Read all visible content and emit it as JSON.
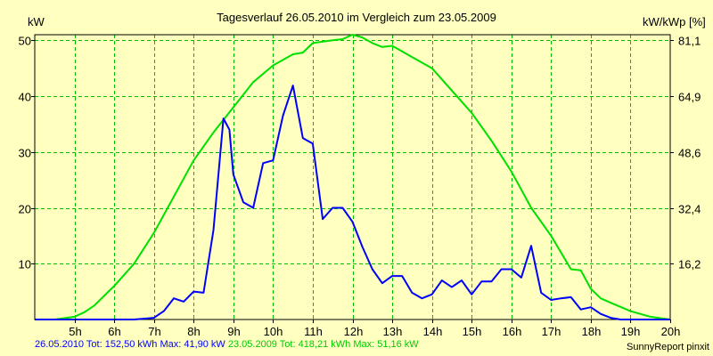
{
  "chart_data": {
    "type": "line",
    "title": "Tagesverlauf 26.05.2010 im Vergleich zum 23.05.2009",
    "y_left_label": "kW",
    "y_right_label": "kW/kWp [%]",
    "x_start": 4.0,
    "x_end": 20.0,
    "x_ticks": [
      "5h",
      "6h",
      "7h",
      "8h",
      "9h",
      "10h",
      "11h",
      "12h",
      "13h",
      "14h",
      "15h",
      "16h",
      "17h",
      "18h",
      "19h",
      "20h"
    ],
    "x_tick_values": [
      5,
      6,
      7,
      8,
      9,
      10,
      11,
      12,
      13,
      14,
      15,
      16,
      17,
      18,
      19,
      20
    ],
    "y_left_ticks": [
      "10",
      "20",
      "30",
      "40",
      "50"
    ],
    "y_left_tick_values": [
      10,
      20,
      30,
      40,
      50
    ],
    "y_right_ticks": [
      "16,2",
      "32,4",
      "48,6",
      "64,9",
      "81,1"
    ],
    "ylim": [
      0,
      51
    ],
    "grid": true,
    "series": [
      {
        "name": "26.05.2010",
        "color": "#0000ff",
        "x": [
          4.0,
          6.5,
          7.0,
          7.25,
          7.5,
          7.75,
          8.0,
          8.25,
          8.5,
          8.75,
          8.9,
          9.0,
          9.25,
          9.5,
          9.75,
          10.0,
          10.25,
          10.5,
          10.75,
          11.0,
          11.25,
          11.5,
          11.75,
          12.0,
          12.25,
          12.5,
          12.75,
          13.0,
          13.25,
          13.5,
          13.75,
          14.0,
          14.25,
          14.5,
          14.75,
          15.0,
          15.25,
          15.5,
          15.75,
          16.0,
          16.25,
          16.5,
          16.75,
          17.0,
          17.25,
          17.5,
          17.75,
          18.0,
          18.25,
          18.5,
          18.75,
          19.0,
          20.0
        ],
        "values": [
          0,
          0,
          0.3,
          1.5,
          3.8,
          3.2,
          5.0,
          4.8,
          16.0,
          36.0,
          34.0,
          26.0,
          21.0,
          20.0,
          28.0,
          28.5,
          36.5,
          41.9,
          32.5,
          31.5,
          18.0,
          20.0,
          20.0,
          17.5,
          13.0,
          9.0,
          6.5,
          7.8,
          7.8,
          4.8,
          3.8,
          4.5,
          7.0,
          5.8,
          7.0,
          4.5,
          6.8,
          6.8,
          9.0,
          9.0,
          7.5,
          13.2,
          4.8,
          3.5,
          3.8,
          4.0,
          1.8,
          2.2,
          1.0,
          0.3,
          0,
          0,
          0
        ]
      },
      {
        "name": "23.05.2009",
        "color": "#00e000",
        "x": [
          4.0,
          4.5,
          5.0,
          5.25,
          5.5,
          6.0,
          6.5,
          7.0,
          7.5,
          8.0,
          8.5,
          9.0,
          9.5,
          10.0,
          10.5,
          10.75,
          11.0,
          11.5,
          11.75,
          12.0,
          12.25,
          12.5,
          12.75,
          13.0,
          13.25,
          13.5,
          14.0,
          14.5,
          15.0,
          15.5,
          16.0,
          16.5,
          17.0,
          17.5,
          17.75,
          18.0,
          18.25,
          18.5,
          19.0,
          19.5,
          20.0
        ],
        "values": [
          0,
          0,
          0.5,
          1.3,
          2.5,
          6.0,
          10.0,
          15.5,
          22.0,
          28.5,
          33.5,
          38.0,
          42.5,
          45.5,
          47.5,
          47.8,
          49.5,
          50.0,
          50.2,
          51.0,
          50.5,
          49.5,
          48.8,
          49.0,
          48.0,
          47.0,
          45.0,
          41.0,
          37.0,
          32.0,
          26.5,
          20.0,
          15.0,
          9.0,
          8.8,
          5.5,
          3.8,
          3.0,
          1.5,
          0.5,
          0
        ]
      }
    ]
  },
  "footer": {
    "series1_text": "26.05.2010 Tot: 152,50 kWh Max: 41,90 kW",
    "series2_text": "23.05.2009 Tot: 418,21 kWh Max: 51,16 kW",
    "credit": "SunnyReport pinxit"
  }
}
